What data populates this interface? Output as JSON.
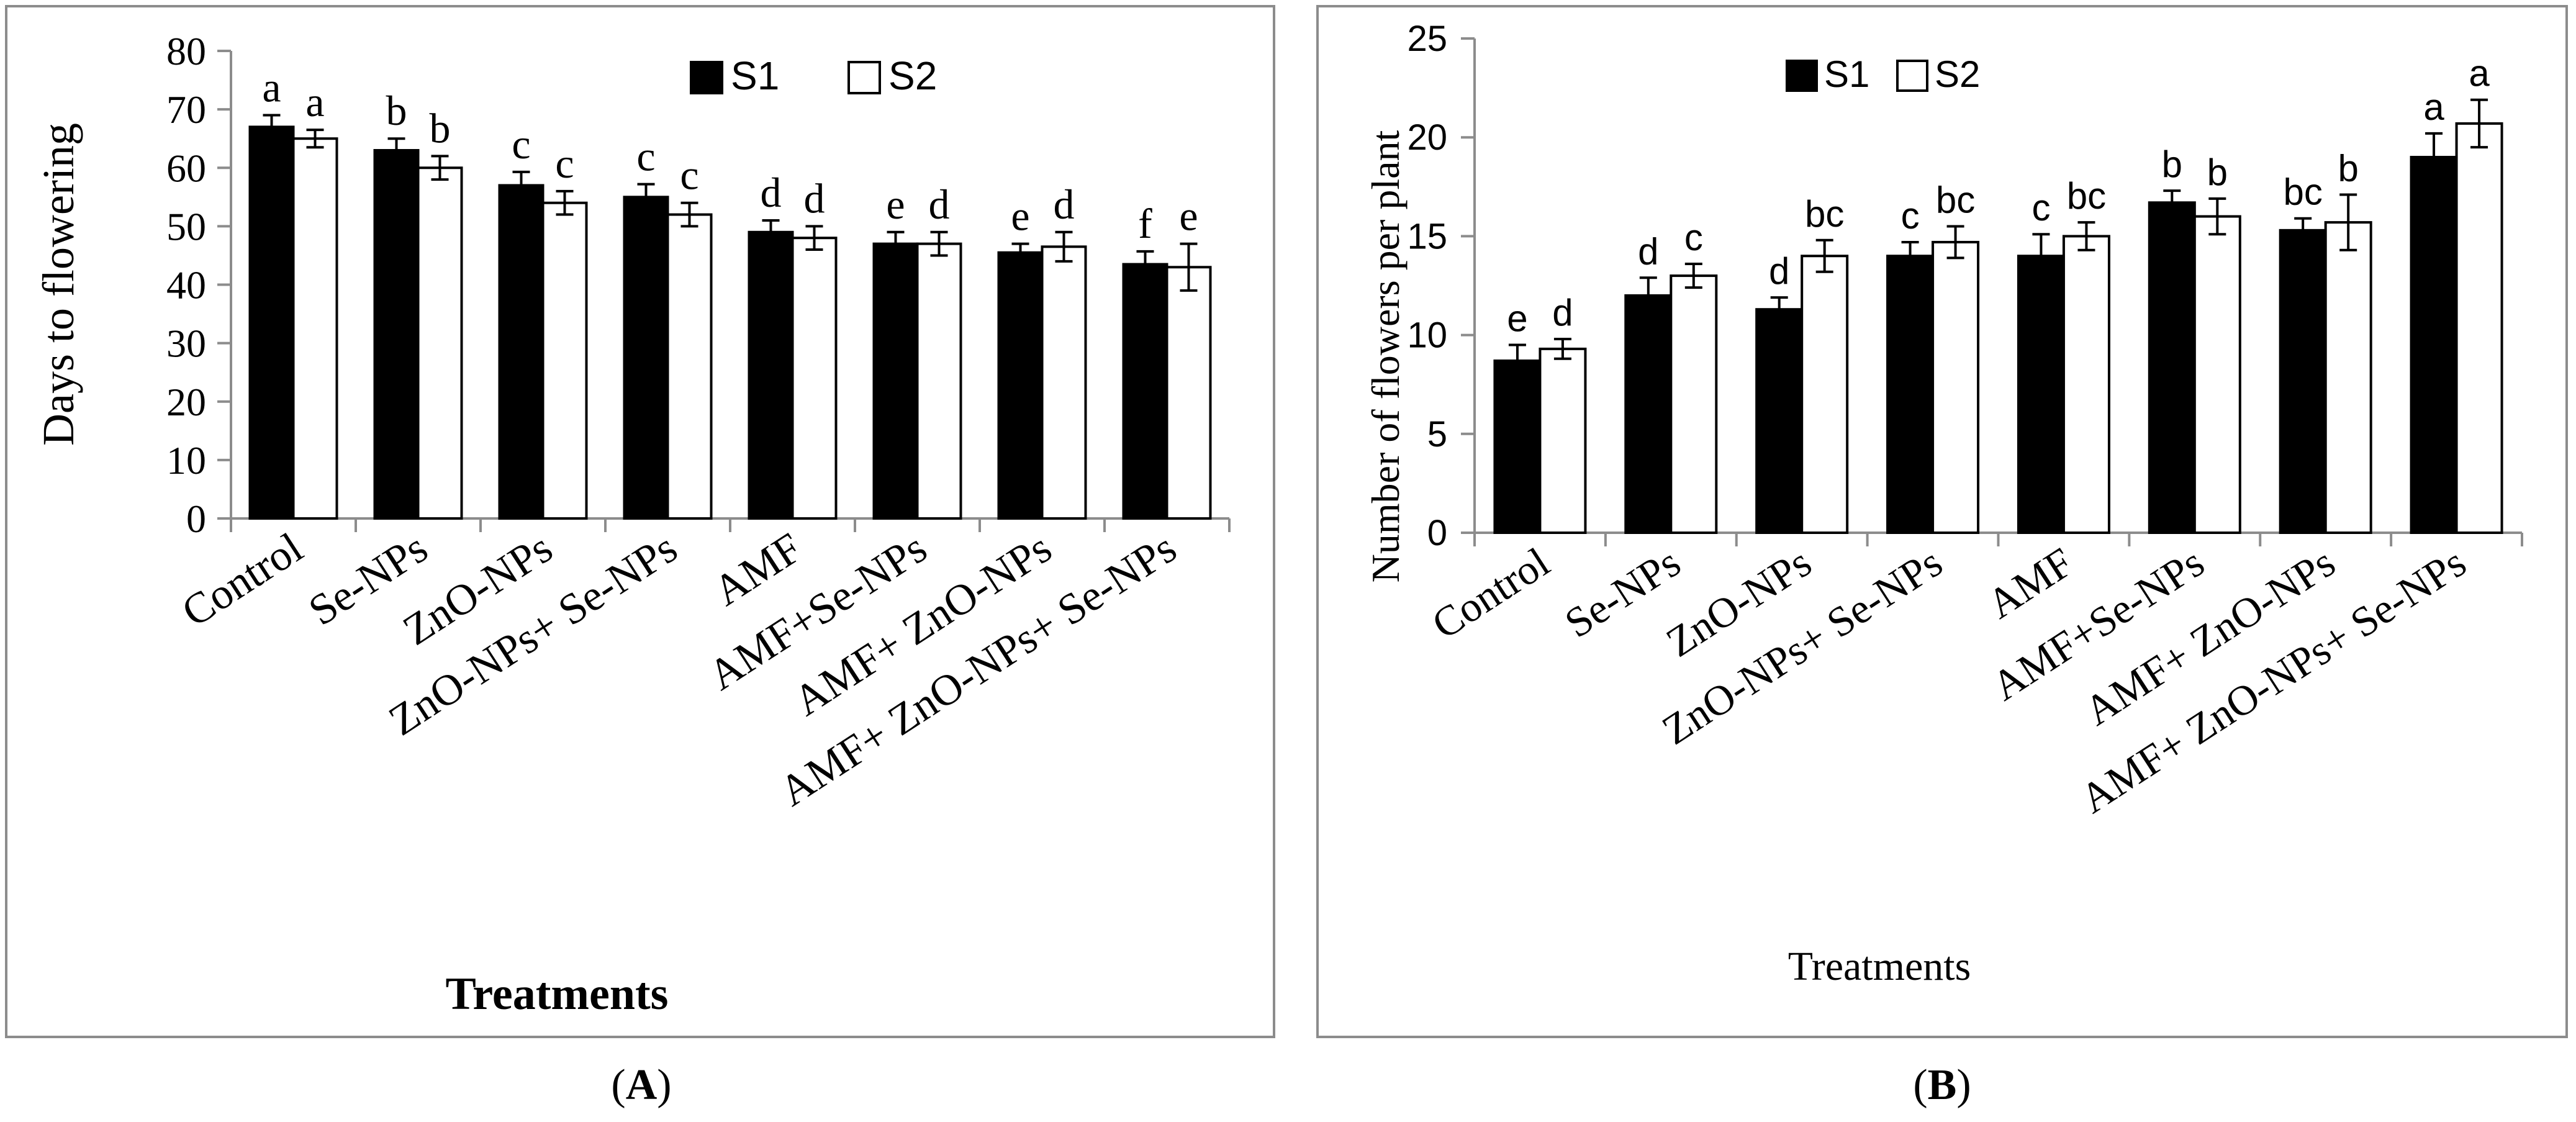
{
  "chart_data": [
    {
      "type": "bar",
      "caption_letter": "A",
      "title": "",
      "xlabel": "Treatments",
      "ylabel": "Days to flowering",
      "ylim": [
        0,
        80
      ],
      "yticks": [
        0,
        10,
        20,
        30,
        40,
        50,
        60,
        70,
        80
      ],
      "legend_position": "top-right",
      "categories": [
        "Control",
        "Se-NPs",
        "ZnO-NPs",
        "ZnO-NPs+ Se-NPs",
        "AMF",
        "AMF+Se-NPs",
        "AMF+ ZnO-NPs",
        "AMF+ ZnO-NPs+ Se-NPs"
      ],
      "series": [
        {
          "name": "S1",
          "color": "#000000",
          "values": [
            67,
            63,
            57,
            55,
            49,
            47,
            45.5,
            43.5
          ],
          "errors": [
            2,
            2,
            2.3,
            2.2,
            2,
            2,
            1.5,
            2.2
          ],
          "labels": [
            "a",
            "b",
            "c",
            "c",
            "d",
            "e",
            "e",
            "f"
          ]
        },
        {
          "name": "S2",
          "color": "#ffffff",
          "values": [
            65,
            60,
            54,
            52,
            48,
            47,
            46.5,
            43
          ],
          "errors": [
            1.5,
            2,
            2,
            2,
            2,
            2,
            2.5,
            4
          ],
          "labels": [
            "a",
            "b",
            "c",
            "c",
            "d",
            "d",
            "d",
            "e"
          ]
        }
      ]
    },
    {
      "type": "bar",
      "caption_letter": "B",
      "title": "",
      "xlabel": "Treatments",
      "ylabel": "Number of  flowers  per plant",
      "ylim": [
        0,
        25
      ],
      "yticks": [
        0,
        5,
        10,
        15,
        20,
        25
      ],
      "legend_position": "top-left",
      "categories": [
        "Control",
        "Se-NPs",
        "ZnO-NPs",
        "ZnO-NPs+ Se-NPs",
        "AMF",
        "AMF+Se-NPs",
        "AMF+ ZnO-NPs",
        "AMF+ ZnO-NPs+ Se-NPs"
      ],
      "series": [
        {
          "name": "S1",
          "color": "#000000",
          "values": [
            8.7,
            12,
            11.3,
            14,
            14,
            16.7,
            15.3,
            19
          ],
          "errors": [
            0.8,
            0.9,
            0.6,
            0.7,
            1.1,
            0.6,
            0.6,
            1.2
          ],
          "labels": [
            "e",
            "d",
            "d",
            "c",
            "c",
            "b",
            "bc",
            "a"
          ]
        },
        {
          "name": "S2",
          "color": "#ffffff",
          "values": [
            9.3,
            13,
            14,
            14.7,
            15,
            16,
            15.7,
            20.7
          ],
          "errors": [
            0.5,
            0.6,
            0.8,
            0.8,
            0.7,
            0.9,
            1.4,
            1.2
          ],
          "labels": [
            "d",
            "c",
            "bc",
            "bc",
            "bc",
            "b",
            "b",
            "a"
          ]
        }
      ]
    }
  ]
}
